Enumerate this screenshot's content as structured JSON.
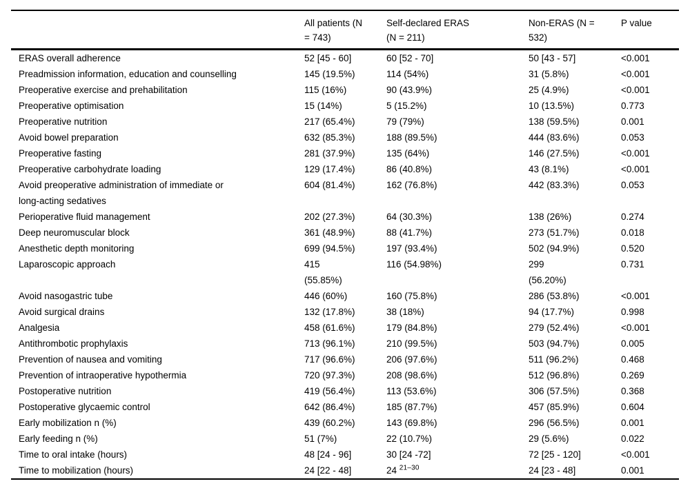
{
  "colors": {
    "text": "#000000",
    "background": "#ffffff",
    "rule": "#000000"
  },
  "table": {
    "columns": [
      {
        "label": ""
      },
      {
        "label": "All patients (N\n= 743)"
      },
      {
        "label": "Self-declared ERAS\n(N = 211)"
      },
      {
        "label": "Non-ERAS (N =\n532)"
      },
      {
        "label": "P value"
      }
    ],
    "rows": [
      [
        "ERAS overall adherence",
        "52 [45 - 60]",
        "60 [52 - 70]",
        "50 [43 - 57]",
        "<0.001"
      ],
      [
        "Preadmission information, education and counselling",
        "145 (19.5%)",
        "114 (54%)",
        "31 (5.8%)",
        "<0.001"
      ],
      [
        "Preoperative exercise and prehabilitation",
        "115 (16%)",
        "90 (43.9%)",
        "25 (4.9%)",
        "<0.001"
      ],
      [
        "Preoperative optimisation",
        "15 (14%)",
        "5 (15.2%)",
        "10 (13.5%)",
        "0.773"
      ],
      [
        "Preoperative nutrition",
        "217 (65.4%)",
        "79 (79%)",
        "138 (59.5%)",
        "0.001"
      ],
      [
        "Avoid bowel preparation",
        "632 (85.3%)",
        "188 (89.5%)",
        "444 (83.6%)",
        "0.053"
      ],
      [
        "Preoperative fasting",
        "281 (37.9%)",
        "135 (64%)",
        "146 (27.5%)",
        "<0.001"
      ],
      [
        "Preoperative carbohydrate loading",
        "129 (17.4%)",
        "86 (40.8%)",
        "43 (8.1%)",
        "<0.001"
      ],
      [
        "Avoid preoperative administration of immediate or\nlong-acting sedatives",
        "604 (81.4%)",
        "162 (76.8%)",
        "442 (83.3%)",
        "0.053"
      ],
      [
        "Perioperative fluid management",
        "202 (27.3%)",
        "64 (30.3%)",
        "138 (26%)",
        "0.274"
      ],
      [
        "Deep neuromuscular block",
        "361 (48.9%)",
        "88 (41.7%)",
        "273 (51.7%)",
        "0.018"
      ],
      [
        "Anesthetic depth monitoring",
        "699 (94.5%)",
        "197 (93.4%)",
        "502 (94.9%)",
        "0.520"
      ],
      [
        "Laparoscopic approach",
        "415\n(55.85%)",
        "116 (54.98%)",
        "299\n(56.20%)",
        "0.731"
      ],
      [
        "Avoid nasogastric tube",
        "446 (60%)",
        "160 (75.8%)",
        "286 (53.8%)",
        "<0.001"
      ],
      [
        "Avoid surgical drains",
        "132 (17.8%)",
        "38 (18%)",
        "94 (17.7%)",
        "0.998"
      ],
      [
        "Analgesia",
        "458 (61.6%)",
        "179 (84.8%)",
        "279 (52.4%)",
        "<0.001"
      ],
      [
        "Antithrombotic prophylaxis",
        "713 (96.1%)",
        "210 (99.5%)",
        "503 (94.7%)",
        "0.005"
      ],
      [
        "Prevention of nausea and vomiting",
        "717 (96.6%)",
        "206 (97.6%)",
        "511 (96.2%)",
        "0.468"
      ],
      [
        "Prevention of intraoperative hypothermia",
        "720 (97.3%)",
        "208 (98.6%)",
        "512 (96.8%)",
        "0.269"
      ],
      [
        "Postoperative nutrition",
        "419 (56.4%)",
        "113 (53.6%)",
        "306 (57.5%)",
        "0.368"
      ],
      [
        "Postoperative glycaemic control",
        "642 (86.4%)",
        "185 (87.7%)",
        "457 (85.9%)",
        "0.604"
      ],
      [
        "Early mobilization n (%)",
        "439 (60.2%)",
        "143 (69.8%)",
        "296 (56.5%)",
        "0.001"
      ],
      [
        "Early feeding n (%)",
        "51 (7%)",
        "22 (10.7%)",
        "29 (5.6%)",
        "0.022"
      ],
      [
        "Time to oral intake (hours)",
        "48 [24 - 96]",
        "30 [24 -72]",
        "72 [25 - 120]",
        "<0.001"
      ],
      [
        "Time to mobilization (hours)",
        "24 [22 - 48]",
        {
          "base": "24",
          "superscript": "21–30"
        },
        "24 [23 - 48]",
        "0.001"
      ]
    ]
  }
}
